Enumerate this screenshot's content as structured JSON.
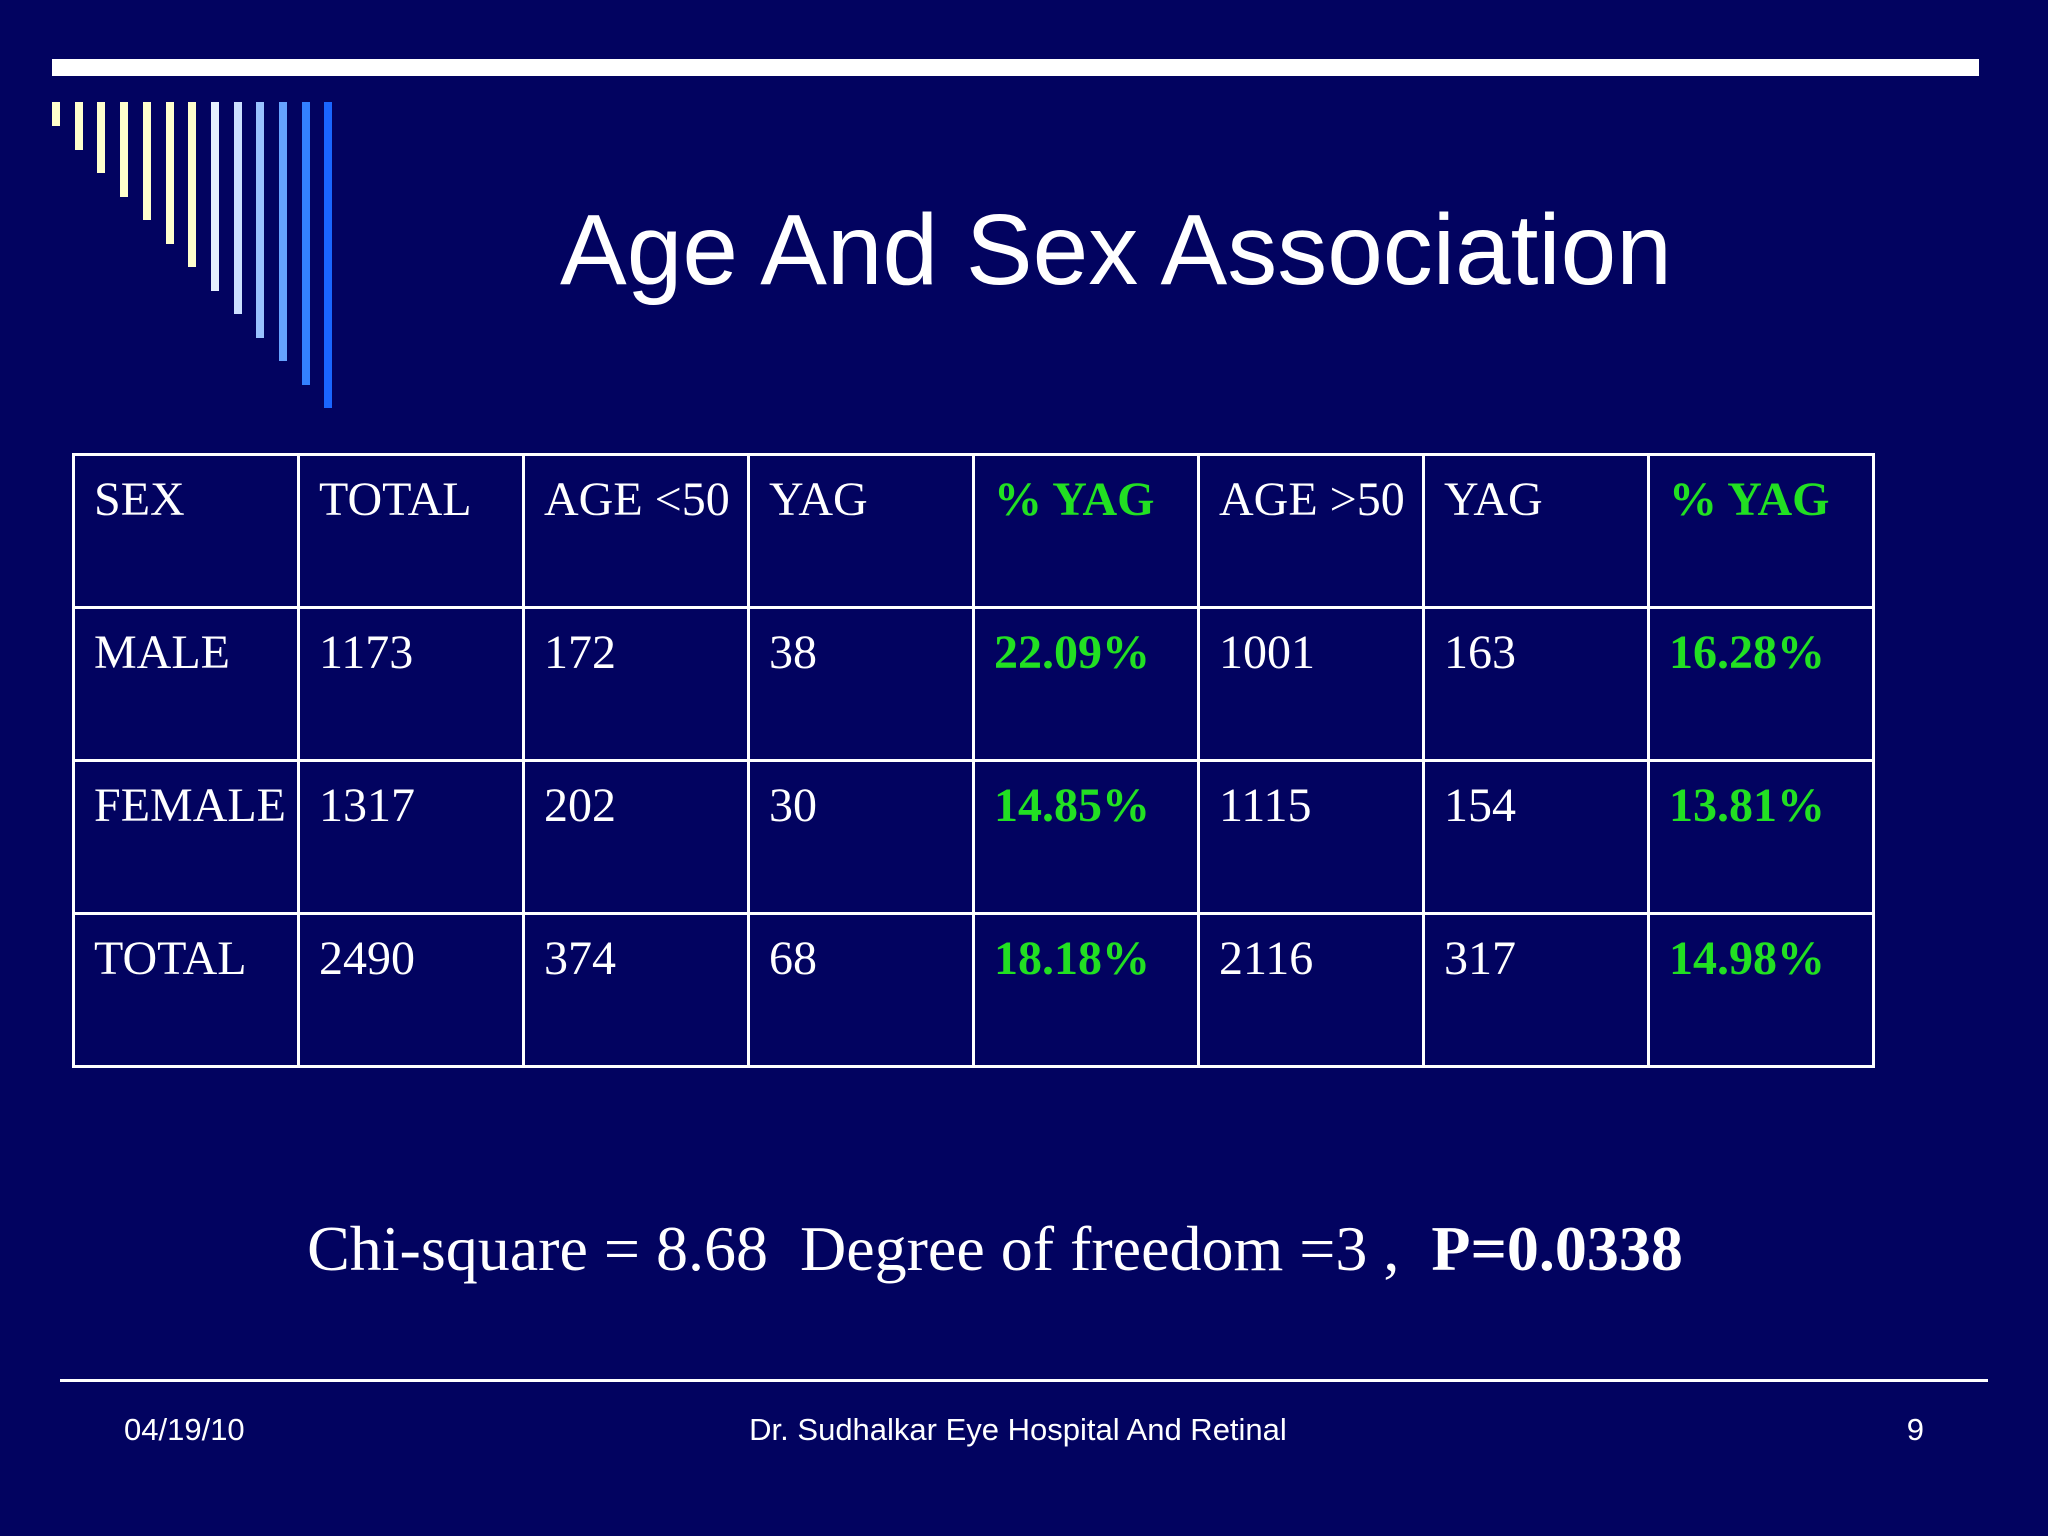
{
  "title": "Age And Sex Association",
  "table": {
    "header": [
      "SEX",
      "TOTAL",
      "AGE <50",
      "YAG",
      "% YAG",
      "AGE >50",
      "YAG",
      "% YAG"
    ],
    "rows": [
      [
        "MALE",
        "1173",
        "172",
        "38",
        "22.09%",
        "1001",
        "163",
        "16.28%"
      ],
      [
        "FEMALE",
        "1317",
        "202",
        "30",
        "14.85%",
        "1115",
        "154",
        "13.81%"
      ],
      [
        "TOTAL",
        "2490",
        "374",
        "68",
        "18.18%",
        "2116",
        "317",
        "14.98%"
      ]
    ]
  },
  "stats": {
    "text": "Chi-square = 8.68  Degree of freedom =3 ,",
    "p": "P=0.0338"
  },
  "footer": {
    "date": "04/19/10",
    "center": "Dr. Sudhalkar Eye Hospital And Retinal",
    "page": "9"
  }
}
